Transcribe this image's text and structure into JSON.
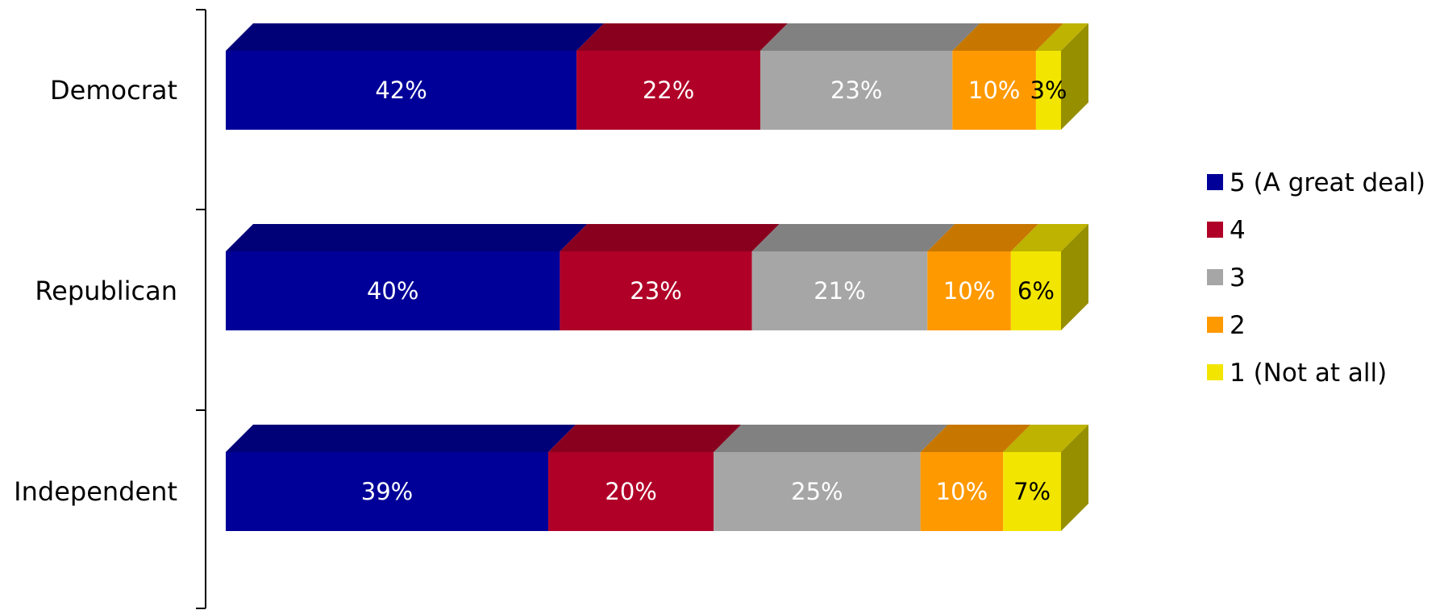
{
  "chart_data": {
    "type": "bar",
    "orientation": "horizontal",
    "stacked": true,
    "percent_stacked": true,
    "three_d": true,
    "categories": [
      "Democrat",
      "Republican",
      "Independent"
    ],
    "series": [
      {
        "name": "5 (A great deal)",
        "values": [
          42,
          40,
          39
        ],
        "color": "#000099",
        "labels": [
          "42%",
          "40%",
          "39%"
        ]
      },
      {
        "name": "4",
        "values": [
          22,
          23,
          20
        ],
        "color": "#B00028",
        "labels": [
          "22%",
          "23%",
          "20%"
        ]
      },
      {
        "name": "3",
        "values": [
          23,
          21,
          25
        ],
        "color": "#A6A6A6",
        "labels": [
          "23%",
          "21%",
          "25%"
        ]
      },
      {
        "name": "2",
        "values": [
          10,
          10,
          10
        ],
        "color": "#FF9900",
        "labels": [
          "10%",
          "10%",
          "10%"
        ]
      },
      {
        "name": "1 (Not at all)",
        "values": [
          3,
          6,
          7
        ],
        "color": "#F2E600",
        "labels": [
          "3%",
          "6%",
          "7%"
        ]
      }
    ],
    "legend_position": "right",
    "grid": false
  }
}
